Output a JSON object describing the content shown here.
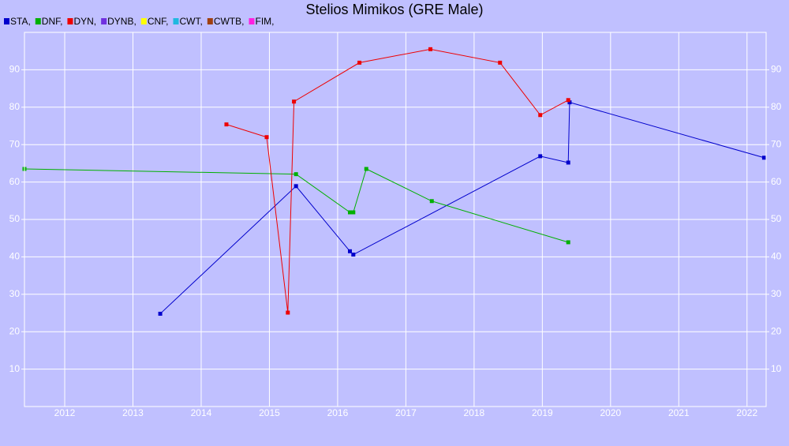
{
  "chart_data": {
    "type": "line",
    "title": "Stelios Mimikos (GRE Male)",
    "xlim": [
      2011.41,
      2022.28
    ],
    "xticks": [
      2012,
      2013,
      2014,
      2015,
      2016,
      2017,
      2018,
      2019,
      2020,
      2021,
      2022
    ],
    "ylim": [
      0,
      100
    ],
    "yticks": [
      10,
      20,
      30,
      40,
      50,
      60,
      70,
      80,
      90
    ],
    "grid": true,
    "legend": "top-left",
    "series": [
      {
        "name": "STA,",
        "color": "#0000cc",
        "x": [
          2013.4,
          2015.39,
          2016.18,
          2016.23,
          2018.97,
          2019.38,
          2019.4,
          2022.25
        ],
        "values": [
          24.8,
          58.9,
          41.5,
          40.6,
          66.9,
          65.2,
          81.3,
          66.5
        ]
      },
      {
        "name": "DNF,",
        "color": "#00b000",
        "x": [
          2011.41,
          2015.39,
          2016.18,
          2016.23,
          2016.42,
          2017.38,
          2019.38
        ],
        "values": [
          63.5,
          62.1,
          51.9,
          51.9,
          63.5,
          54.9,
          43.9
        ]
      },
      {
        "name": "DYN,",
        "color": "#ee0000",
        "x": [
          2014.37,
          2014.96,
          2015.27,
          2015.36,
          2016.32,
          2017.36,
          2018.38,
          2018.97,
          2019.38
        ],
        "values": [
          75.4,
          72.0,
          25.1,
          81.5,
          91.9,
          95.5,
          91.9,
          77.9,
          81.9
        ]
      },
      {
        "name": "DYNB,",
        "color": "#7030e0",
        "x": [],
        "values": []
      },
      {
        "name": "CNF,",
        "color": "#ffff00",
        "x": [],
        "values": []
      },
      {
        "name": "CWT,",
        "color": "#20b8e0",
        "x": [],
        "values": []
      },
      {
        "name": "CWTB,",
        "color": "#a04010",
        "x": [],
        "values": []
      },
      {
        "name": "FIM,",
        "color": "#ff20e0",
        "x": [],
        "values": []
      }
    ]
  }
}
